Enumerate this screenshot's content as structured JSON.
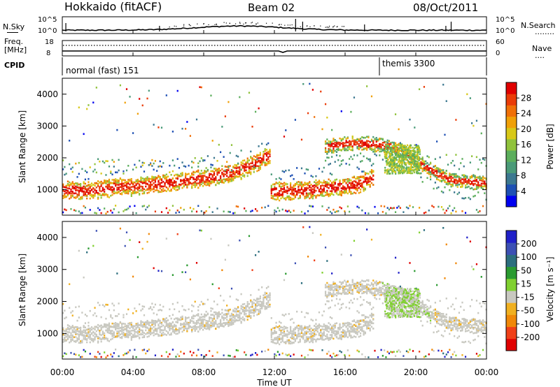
{
  "header": {
    "station": "Hokkaido (fitACF)",
    "beam": "Beam 02",
    "date": "08/Oct/2011"
  },
  "top_panel": {
    "nsky_label": "N.Sky",
    "nsearch_label": "N.Search",
    "left_ticks": [
      "10^5",
      "10^0"
    ],
    "right_ticks": [
      "10^5",
      "10^0"
    ],
    "nsearch_legend": "........"
  },
  "freq_panel": {
    "freq_label": "Freq.",
    "freq_unit": "[MHz]",
    "nave_label": "Nave",
    "nave_legend": "....",
    "left_ticks": [
      "18",
      "8"
    ],
    "right_ticks": [
      "60",
      "0"
    ]
  },
  "cpid_panel": {
    "label": "CPID",
    "modes": [
      {
        "name": "normal (fast) 151",
        "start_hour": 0
      },
      {
        "name": "themis 3300",
        "start_hour": 18
      }
    ]
  },
  "chart_data": [
    {
      "type": "heatmap",
      "title": "",
      "ylabel": "Slant Range [km]",
      "xlabel": "",
      "x_range_hours": [
        0,
        24
      ],
      "ylim": [
        200,
        4500
      ],
      "yticks": [
        1000,
        2000,
        3000,
        4000
      ],
      "colorbar": {
        "label": "Power [dB]",
        "ticks": [
          28,
          24,
          20,
          16,
          12,
          8,
          4
        ],
        "range": [
          0,
          30
        ],
        "colors": [
          "#0000f0",
          "#1e50b4",
          "#3c7890",
          "#4a9a78",
          "#5cae5c",
          "#90c23c",
          "#d8c818",
          "#f0a008",
          "#f07008",
          "#ea3c08",
          "#e00000"
        ]
      },
      "bands": [
        {
          "name": "lower",
          "points": [
            [
              0,
              1000
            ],
            [
              1,
              950
            ],
            [
              2,
              1000
            ],
            [
              3,
              1080
            ],
            [
              4,
              1100
            ],
            [
              5,
              1150
            ],
            [
              6,
              1200
            ],
            [
              7,
              1280
            ],
            [
              8,
              1350
            ],
            [
              9,
              1450
            ],
            [
              10,
              1600
            ],
            [
              11,
              1850
            ],
            [
              11.5,
              2050
            ],
            [
              12,
              950
            ],
            [
              13,
              950
            ],
            [
              14,
              1000
            ],
            [
              15,
              1050
            ],
            [
              16,
              1100
            ],
            [
              17,
              1200
            ],
            [
              17.5,
              1400
            ]
          ],
          "power_db": 26
        },
        {
          "name": "upper",
          "points": [
            [
              15,
              2350
            ],
            [
              16,
              2450
            ],
            [
              17,
              2450
            ],
            [
              18,
              2400
            ],
            [
              18.5,
              2350
            ],
            [
              19,
              2250
            ],
            [
              20,
              1900
            ],
            [
              21,
              1550
            ],
            [
              22,
              1300
            ],
            [
              23,
              1250
            ],
            [
              24,
              1200
            ]
          ],
          "power_db": 24
        }
      ]
    },
    {
      "type": "heatmap",
      "title": "",
      "ylabel": "Slant Range [km]",
      "xlabel": "Time UT",
      "x_range_hours": [
        0,
        24
      ],
      "xtick_labels": [
        "00:00",
        "04:00",
        "08:00",
        "12:00",
        "16:00",
        "20:00",
        "00:00"
      ],
      "ylim": [
        200,
        4500
      ],
      "yticks": [
        1000,
        2000,
        3000,
        4000
      ],
      "colorbar": {
        "label": "Velocity [m s⁻¹]",
        "ticks": [
          "200",
          "100",
          "50",
          "15",
          "-15",
          "-50",
          "-100",
          "-200"
        ],
        "range": [
          -250,
          250
        ],
        "colors": [
          "#e00000",
          "#f04018",
          "#f08808",
          "#f0b020",
          "#c8c8c0",
          "#80d030",
          "#2a9a30",
          "#2c6e7e",
          "#3c50b4",
          "#2020c8"
        ]
      },
      "dominant_velocity": "ground scatter (gray, |v| < 15 m/s)"
    }
  ]
}
